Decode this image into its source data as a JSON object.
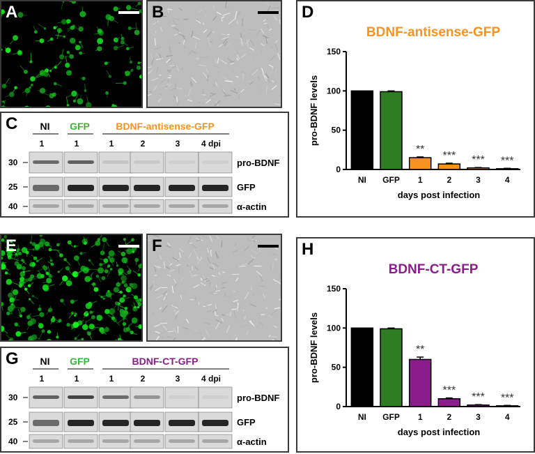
{
  "panels": {
    "A": "A",
    "B": "B",
    "C": "C",
    "D": "D",
    "E": "E",
    "F": "F",
    "G": "G",
    "H": "H"
  },
  "blot_top": {
    "groups": [
      {
        "label": "NI",
        "color": "#000000"
      },
      {
        "label": "GFP",
        "color": "#3cb43c"
      },
      {
        "label": "BDNF-antisense-GFP",
        "color": "#f7931e"
      }
    ],
    "lanes": [
      "1",
      "1",
      "1",
      "2",
      "3",
      "4 dpi"
    ],
    "markers": [
      "30",
      "25",
      "40"
    ],
    "bands": [
      "pro-BDNF",
      "GFP",
      "α-actin"
    ],
    "probdnf_intensity": [
      0.55,
      0.6,
      0.1,
      0.08,
      0.05,
      0.05
    ]
  },
  "blot_bottom": {
    "groups": [
      {
        "label": "NI",
        "color": "#000000"
      },
      {
        "label": "GFP",
        "color": "#3cb43c"
      },
      {
        "label": "BDNF-CT-GFP",
        "color": "#8b1c8b"
      }
    ],
    "lanes": [
      "1",
      "1",
      "1",
      "2",
      "3",
      "4 dpi"
    ],
    "markers": [
      "30",
      "25",
      "40"
    ],
    "bands": [
      "pro-BDNF",
      "GFP",
      "α-actin"
    ],
    "probdnf_intensity": [
      0.6,
      0.75,
      0.55,
      0.35,
      0.05,
      0.05
    ]
  },
  "chart_data": [
    {
      "type": "bar",
      "title": "BDNF-antisense-GFP",
      "title_color": "#f7931e",
      "xlabel": "days post infection",
      "ylabel": "pro-BDNF levels",
      "ylim": [
        0,
        150
      ],
      "yticks": [
        "0",
        "50",
        "100",
        "150"
      ],
      "categories": [
        "NI",
        "GFP",
        "1",
        "2",
        "3",
        "4"
      ],
      "values": [
        100,
        99,
        15,
        7,
        2,
        1
      ],
      "errors": [
        0,
        1,
        1,
        1,
        0.5,
        0.5
      ],
      "colors": [
        "#000000",
        "#2e7d22",
        "#f7931e",
        "#f7931e",
        "#f7931e",
        "#f7931e"
      ],
      "annotations": [
        "",
        "",
        "**",
        "***",
        "***",
        "***"
      ]
    },
    {
      "type": "bar",
      "title": "BDNF-CT-GFP",
      "title_color": "#8b1c8b",
      "xlabel": "days post infection",
      "ylabel": "pro-BDNF levels",
      "ylim": [
        0,
        150
      ],
      "yticks": [
        "0",
        "50",
        "100",
        "150"
      ],
      "categories": [
        "NI",
        "GFP",
        "1",
        "2",
        "3",
        "4"
      ],
      "values": [
        100,
        99,
        60,
        10,
        2,
        1
      ],
      "errors": [
        0,
        1,
        3,
        1,
        0.5,
        0.5
      ],
      "colors": [
        "#000000",
        "#2e7d22",
        "#8b1c8b",
        "#8b1c8b",
        "#8b1c8b",
        "#8b1c8b"
      ],
      "annotations": [
        "",
        "",
        "**",
        "***",
        "***",
        "***"
      ]
    }
  ]
}
